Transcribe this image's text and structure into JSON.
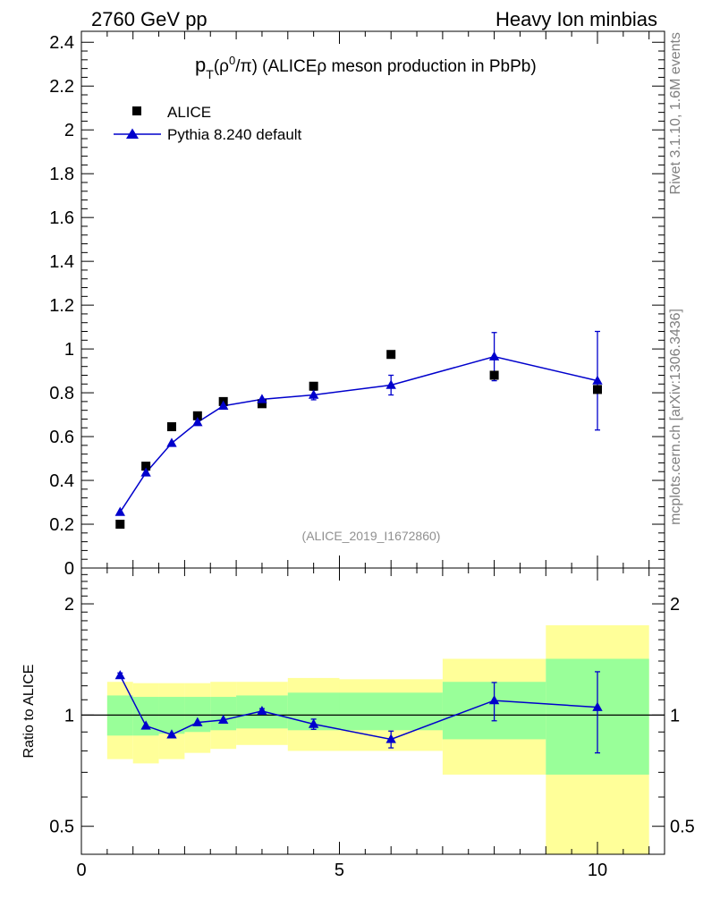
{
  "header": {
    "left": "2760 GeV pp",
    "right": "Heavy Ion minbias"
  },
  "side_text": {
    "rivet": "Rivet 3.1.10,  1.6M events",
    "mcplots": "mcplots.cern.ch [arXiv:1306.3436]"
  },
  "chart_data": [
    {
      "type": "scatter",
      "panel": "main",
      "title": "p_T(ρ⁰/π) (ALICE ρ meson production in PbPb)",
      "title_parts": {
        "p": "p",
        "sub": "T",
        "paren": "(ρ",
        "sup": "0",
        "rest": "/π) (ALICEρ meson production in PbPb)"
      },
      "watermark": "(ALICE_2019_I1672860)",
      "xlabel": "",
      "ylabel": "",
      "xlim": [
        0,
        11.3
      ],
      "ylim": [
        0,
        2.45
      ],
      "yticks": [
        0,
        0.2,
        0.4,
        0.6,
        0.8,
        1,
        1.2,
        1.4,
        1.6,
        1.8,
        2,
        2.2,
        2.4
      ],
      "ytick_labels": [
        "0",
        "0.2",
        "0.4",
        "0.6",
        "0.8",
        "1",
        "1.2",
        "1.4",
        "1.6",
        "1.8",
        "2",
        "2.2",
        "2.4"
      ],
      "legend_position": "top-left",
      "legend": [
        "ALICE",
        "Pythia 8.240 default"
      ],
      "series": [
        {
          "name": "ALICE",
          "marker": "square",
          "color": "#000000",
          "x": [
            0.75,
            1.25,
            1.75,
            2.25,
            2.75,
            3.5,
            4.5,
            6.0,
            8.0,
            10.0
          ],
          "y": [
            0.2,
            0.465,
            0.645,
            0.695,
            0.76,
            0.75,
            0.83,
            0.975,
            0.88,
            0.815
          ]
        },
        {
          "name": "Pythia 8.240 default",
          "marker": "triangle",
          "color": "#0000cc",
          "x": [
            0.75,
            1.25,
            1.75,
            2.25,
            2.75,
            3.5,
            4.5,
            6.0,
            8.0,
            10.0
          ],
          "y": [
            0.255,
            0.435,
            0.57,
            0.665,
            0.74,
            0.77,
            0.79,
            0.835,
            0.965,
            0.855
          ],
          "err": [
            0.003,
            0.005,
            0.006,
            0.007,
            0.008,
            0.012,
            0.022,
            0.045,
            0.11,
            0.225
          ]
        }
      ]
    },
    {
      "type": "scatter",
      "panel": "ratio",
      "ylabel": "Ratio to ALICE",
      "xlim": [
        0,
        11.3
      ],
      "ylim": [
        0.42,
        2.5
      ],
      "yscale": "log",
      "yticks": [
        0.5,
        1,
        2
      ],
      "ytick_labels": [
        "0.5",
        "1",
        "2"
      ],
      "xticks": [
        0,
        5,
        10
      ],
      "xtick_labels": [
        "0",
        "5",
        "10"
      ],
      "bands": {
        "x_edges": [
          0.5,
          1.0,
          1.5,
          2.0,
          2.5,
          3.0,
          4.0,
          5.0,
          7.0,
          9.0,
          11.0
        ],
        "yellow": [
          [
            0.76,
            1.23
          ],
          [
            0.74,
            1.22
          ],
          [
            0.76,
            1.22
          ],
          [
            0.79,
            1.22
          ],
          [
            0.81,
            1.23
          ],
          [
            0.83,
            1.23
          ],
          [
            0.8,
            1.26
          ],
          [
            0.8,
            1.25
          ],
          [
            0.69,
            1.42
          ],
          [
            0.2,
            1.75
          ]
        ],
        "green": [
          [
            0.88,
            1.13
          ],
          [
            0.88,
            1.12
          ],
          [
            0.89,
            1.12
          ],
          [
            0.9,
            1.12
          ],
          [
            0.91,
            1.12
          ],
          [
            0.92,
            1.13
          ],
          [
            0.91,
            1.15
          ],
          [
            0.91,
            1.15
          ],
          [
            0.86,
            1.23
          ],
          [
            0.69,
            1.42
          ]
        ],
        "yellow_color": "#ffff99",
        "green_color": "#99ff99"
      },
      "series": [
        {
          "name": "Pythia 8.240 default",
          "color": "#0000cc",
          "x": [
            0.75,
            1.25,
            1.75,
            2.25,
            2.75,
            3.5,
            4.5,
            6.0,
            8.0,
            10.0
          ],
          "y": [
            1.28,
            0.935,
            0.885,
            0.955,
            0.97,
            1.025,
            0.945,
            0.86,
            1.095,
            1.05
          ],
          "err": [
            0.02,
            0.01,
            0.01,
            0.01,
            0.012,
            0.016,
            0.03,
            0.045,
            0.13,
            0.26
          ]
        }
      ]
    }
  ]
}
